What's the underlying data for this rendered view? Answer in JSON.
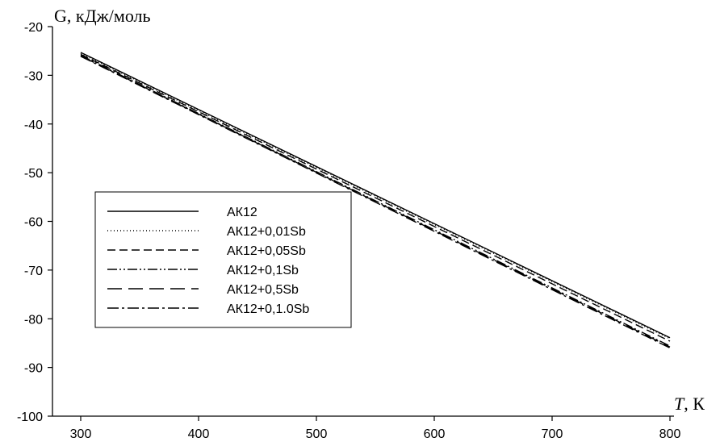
{
  "chart_data": {
    "type": "line",
    "ylabel": "G, кДж/моль",
    "xlabel_italic": "T",
    "xlabel_rest": ", К",
    "xlim": [
      300,
      800
    ],
    "ylim": [
      -100,
      -20
    ],
    "x_ticks": [
      300,
      400,
      500,
      600,
      700,
      800
    ],
    "y_ticks": [
      -20,
      -30,
      -40,
      -50,
      -60,
      -70,
      -80,
      -90,
      -100
    ],
    "x_tick_labels": [
      "300",
      "400",
      "500",
      "600",
      "700",
      "800"
    ],
    "y_tick_labels": [
      "-20",
      "-30",
      "-40",
      "-50",
      "-60",
      "-70",
      "-80",
      "-90",
      "-100"
    ],
    "grid": false,
    "legend_position": "left-middle",
    "x": [
      300,
      800
    ],
    "series": [
      {
        "name": "АК12",
        "values": [
          -25.3,
          -83.9
        ],
        "dash": "none",
        "color": "#000000"
      },
      {
        "name": "АК12+0,01Sb",
        "values": [
          -25.5,
          -84.1
        ],
        "dash": "1 3",
        "color": "#000000"
      },
      {
        "name": "АК12+0,05Sb",
        "values": [
          -25.7,
          -84.6
        ],
        "dash": "10 5",
        "color": "#000000"
      },
      {
        "name": "АК12+0,1Sb",
        "values": [
          -25.9,
          -85.6
        ],
        "dash": "12 3 2 3 2 3",
        "color": "#000000"
      },
      {
        "name": "АК12+0,5Sb",
        "values": [
          -26.0,
          -85.8
        ],
        "dash": "18 8",
        "color": "#000000"
      },
      {
        "name": "АК12+0,1.0Sb",
        "values": [
          -26.1,
          -86.0
        ],
        "dash": "14 4 3 4",
        "color": "#000000"
      }
    ]
  }
}
